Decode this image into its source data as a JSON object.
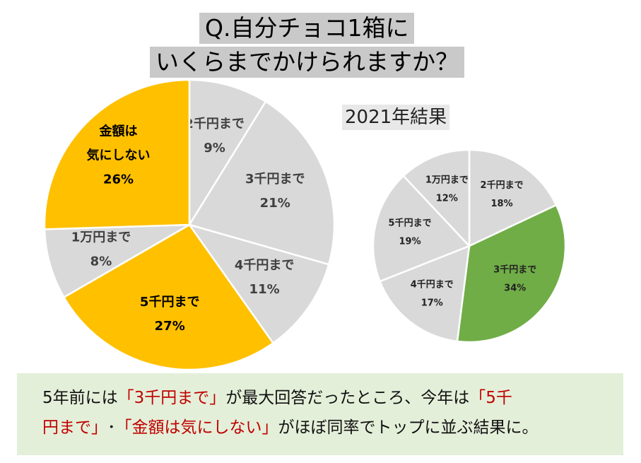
{
  "title": {
    "line1": "Q.自分チョコ1箱に",
    "line2": "いくらまでかけられますか？"
  },
  "subtitle": "2021年結果",
  "chart_data": [
    {
      "type": "pie",
      "title": "Q.自分チョコ1箱にいくらまでかけられますか？",
      "start_angle": 0,
      "slices": [
        {
          "label": "2千円まで",
          "value": 9,
          "pct": "9%",
          "color": "#d9d9d9"
        },
        {
          "label": "3千円まで",
          "value": 21,
          "pct": "21%",
          "color": "#d9d9d9"
        },
        {
          "label": "4千円まで",
          "value": 11,
          "pct": "11%",
          "color": "#d9d9d9"
        },
        {
          "label": "5千円まで",
          "value": 27,
          "pct": "27%",
          "color": "#ffc000"
        },
        {
          "label": "1万円まで",
          "value": 8,
          "pct": "8%",
          "color": "#d9d9d9"
        },
        {
          "label": "金額は気にしない",
          "value": 26,
          "pct": "26%",
          "color": "#ffc000",
          "label_lines": [
            "金額は",
            "気にしない"
          ]
        }
      ]
    },
    {
      "type": "pie",
      "title": "2021年結果",
      "start_angle": 0,
      "slices": [
        {
          "label": "2千円まで",
          "value": 18,
          "pct": "18%",
          "color": "#d9d9d9"
        },
        {
          "label": "3千円まで",
          "value": 34,
          "pct": "34%",
          "color": "#70ad47"
        },
        {
          "label": "4千円まで",
          "value": 17,
          "pct": "17%",
          "color": "#d9d9d9"
        },
        {
          "label": "5千円まで",
          "value": 19,
          "pct": "19%",
          "color": "#d9d9d9"
        },
        {
          "label": "1万円まで",
          "value": 12,
          "pct": "12%",
          "color": "#d9d9d9"
        }
      ]
    }
  ],
  "summary": {
    "p1": "5年前には",
    "q1": "「3千円まで」",
    "p2": "が最大回答だったところ、今年は",
    "q2a": "「5千",
    "q2b": "円まで」",
    "dot": "･",
    "q3": "「金額は気にしない」",
    "p3": "がほぼ同率でトップに並ぶ結果に。"
  },
  "colors": {
    "grey_slice": "#d9d9d9",
    "highlight": "#ffc000",
    "green": "#70ad47",
    "callout_bg": "#e4efd9",
    "accent_text": "#c00000"
  }
}
